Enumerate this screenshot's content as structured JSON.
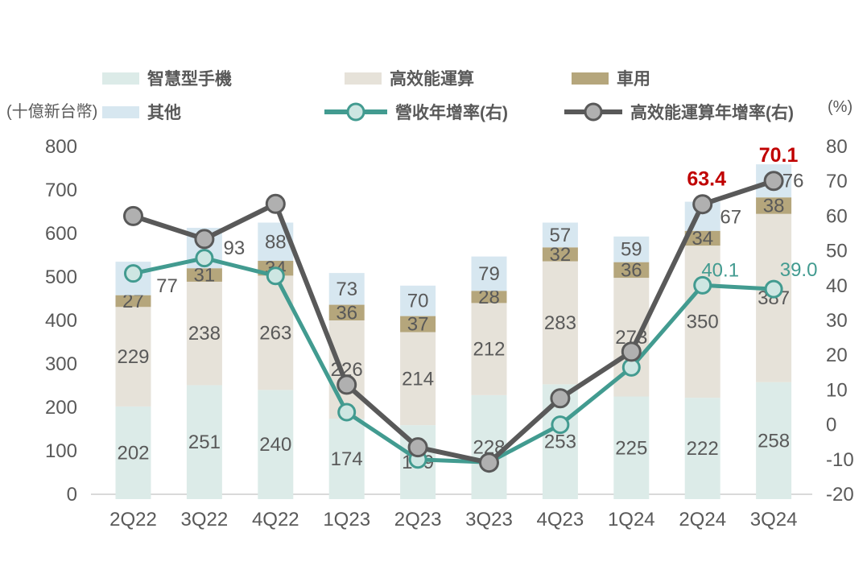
{
  "axes": {
    "left_unit": "(十億新台幣)",
    "right_unit": "(%)",
    "left_ticks": [
      800,
      700,
      600,
      500,
      400,
      300,
      200,
      100,
      0
    ],
    "right_ticks": [
      80,
      70,
      60,
      50,
      40,
      30,
      20,
      10,
      0,
      -10,
      -20
    ]
  },
  "legend": {
    "items": [
      {
        "key": "smartphone",
        "label": "智慧型手機",
        "type": "swatch",
        "color": "#dcebe8"
      },
      {
        "key": "hpc",
        "label": "高效能運算",
        "type": "swatch",
        "color": "#e6e2d9"
      },
      {
        "key": "automotive",
        "label": "車用",
        "type": "swatch",
        "color": "#b5a67c"
      },
      {
        "key": "others",
        "label": "其他",
        "type": "swatch",
        "color": "#d7e7f0"
      },
      {
        "key": "revenue-yoy",
        "label": "營收年增率(右)",
        "type": "line",
        "color": "#429b90",
        "marker_fill": "#cde6e2"
      },
      {
        "key": "hpc-yoy",
        "label": "高效能運算年增率(右)",
        "type": "line",
        "color": "#595959",
        "marker_fill": "#b0b0b0"
      }
    ]
  },
  "chart_data": {
    "type": "combo: stacked bar + line",
    "categories": [
      "2Q22",
      "3Q22",
      "4Q22",
      "1Q23",
      "2Q23",
      "3Q23",
      "4Q23",
      "1Q24",
      "2Q24",
      "3Q24"
    ],
    "left_axis": {
      "label": "(十億新台幣)",
      "min": 0,
      "max": 800
    },
    "right_axis": {
      "label": "(%)",
      "min": -20,
      "max": 80
    },
    "grid": false,
    "legend_position": "top",
    "bar_series": [
      {
        "key": "smartphone",
        "name": "智慧型手機",
        "color": "#dcebe8",
        "values": [
          202,
          251,
          240,
          174,
          159,
          228,
          253,
          225,
          222,
          258
        ]
      },
      {
        "key": "hpc",
        "name": "高效能運算",
        "color": "#e6e2d9",
        "values": [
          229,
          238,
          263,
          226,
          214,
          212,
          283,
          273,
          350,
          387
        ]
      },
      {
        "key": "automotive",
        "name": "車用",
        "color": "#b5a67c",
        "values": [
          27,
          31,
          34,
          36,
          37,
          28,
          32,
          36,
          34,
          38
        ]
      },
      {
        "key": "others",
        "name": "其他",
        "color": "#d7e7f0",
        "values": [
          77,
          93,
          88,
          73,
          70,
          79,
          57,
          59,
          67,
          76
        ]
      }
    ],
    "line_series": [
      {
        "key": "revenue-yoy",
        "name": "營收年增率(右)",
        "axis": "right",
        "color": "#429b90",
        "marker_fill": "#cde6e2",
        "values": [
          43.5,
          47.9,
          42.8,
          3.6,
          -10.0,
          -10.8,
          0.0,
          16.5,
          40.1,
          39.0
        ],
        "point_labels": {
          "8": "40.1",
          "9": "39.0"
        },
        "label_color": "#429b90",
        "label_bold": false
      },
      {
        "key": "hpc-yoy",
        "name": "高效能運算年增率(右)",
        "axis": "right",
        "color": "#595959",
        "marker_fill": "#b0b0b0",
        "values": [
          60.0,
          53.4,
          63.5,
          11.5,
          -6.5,
          -10.9,
          7.6,
          21.0,
          63.4,
          70.1
        ],
        "point_labels": {
          "8": "63.4",
          "9": "70.1"
        },
        "label_color": "#c00000",
        "label_bold": true
      }
    ],
    "text_color": "#595959"
  }
}
